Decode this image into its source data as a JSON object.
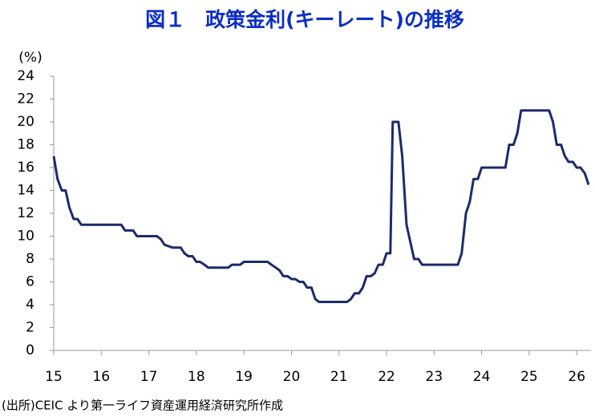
{
  "chart_data": {
    "type": "line",
    "title": "図１　政策金利(キーレート)の推移",
    "y_label": "(%)",
    "source": "(出所)CEIC より第一ライフ資産運用経済研究所作成",
    "color": "#1c2b6b",
    "x": [
      15.0,
      15.08,
      15.17,
      15.25,
      15.33,
      15.42,
      15.5,
      15.58,
      16.42,
      16.5,
      16.67,
      16.75,
      17.17,
      17.25,
      17.33,
      17.5,
      17.67,
      17.75,
      17.83,
      17.92,
      18.0,
      18.08,
      18.17,
      18.25,
      18.67,
      18.75,
      18.92,
      19.0,
      19.5,
      19.58,
      19.67,
      19.75,
      19.83,
      19.92,
      20.0,
      20.08,
      20.17,
      20.25,
      20.33,
      20.42,
      20.5,
      20.58,
      21.17,
      21.25,
      21.33,
      21.42,
      21.5,
      21.58,
      21.67,
      21.75,
      21.83,
      21.92,
      22.0,
      22.08,
      22.13,
      22.25,
      22.33,
      22.42,
      22.5,
      22.58,
      22.67,
      22.75,
      23.5,
      23.58,
      23.67,
      23.75,
      23.83,
      23.92,
      24.0,
      24.5,
      24.58,
      24.67,
      24.75,
      24.83,
      25.42,
      25.5,
      25.58,
      25.67,
      25.75,
      25.83,
      25.92,
      26.0,
      26.08,
      26.17,
      26.25
    ],
    "values": [
      17,
      15,
      14,
      14,
      12.5,
      11.5,
      11.5,
      11,
      11,
      10.5,
      10.5,
      10,
      10,
      9.75,
      9.25,
      9,
      9,
      8.5,
      8.25,
      8.25,
      7.75,
      7.75,
      7.5,
      7.25,
      7.25,
      7.5,
      7.5,
      7.75,
      7.75,
      7.5,
      7.25,
      7,
      6.5,
      6.5,
      6.25,
      6.25,
      6,
      6,
      5.5,
      5.5,
      4.5,
      4.25,
      4.25,
      4.5,
      5,
      5,
      5.5,
      6.5,
      6.5,
      6.75,
      7.5,
      7.5,
      8.5,
      8.5,
      20,
      20,
      17,
      11,
      9.5,
      8,
      8,
      7.5,
      7.5,
      8.5,
      12,
      13,
      15,
      15,
      16,
      16,
      18,
      18,
      19,
      21,
      21,
      20,
      18,
      18,
      17,
      16.5,
      16.5,
      16,
      16,
      15.5,
      14.5
    ],
    "xlim": [
      15,
      26.3
    ],
    "xticks": [
      15,
      16,
      17,
      18,
      19,
      20,
      21,
      22,
      23,
      24,
      25,
      26
    ],
    "ylim": [
      0,
      24
    ],
    "yticks": [
      0,
      2,
      4,
      6,
      8,
      10,
      12,
      14,
      16,
      18,
      20,
      22,
      24
    ]
  }
}
